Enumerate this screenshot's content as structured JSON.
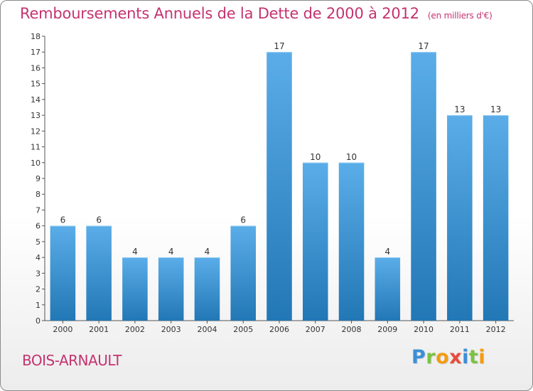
{
  "header": {
    "title": "Remboursements Annuels de la Dette de 2000 à 2012",
    "unit": "(en milliers d'€)"
  },
  "footer": {
    "commune": "BOIS-ARNAULT",
    "logo_letters": [
      "P",
      "r",
      "o",
      "x",
      "i",
      "t",
      "i"
    ],
    "logo_colors": [
      "#3a8fd8",
      "#7cc242",
      "#f39c12",
      "#e74c3c",
      "#3a8fd8",
      "#7cc242",
      "#f39c12"
    ]
  },
  "chart_data": {
    "type": "bar",
    "title": "Remboursements Annuels de la Dette de 2000 à 2012",
    "xlabel": "",
    "ylabel": "",
    "categories": [
      "2000",
      "2001",
      "2002",
      "2003",
      "2004",
      "2005",
      "2006",
      "2007",
      "2008",
      "2009",
      "2010",
      "2011",
      "2012"
    ],
    "values": [
      6,
      6,
      4,
      4,
      4,
      6,
      17,
      10,
      10,
      4,
      17,
      13,
      13
    ],
    "value_labels": [
      "6",
      "6",
      "4",
      "4",
      "4",
      "6",
      "17",
      "10",
      "10",
      "4",
      "17",
      "13",
      "13"
    ],
    "ylim": [
      0,
      18
    ],
    "yticks": [
      "0",
      "1",
      "2",
      "3",
      "4",
      "5",
      "6",
      "7",
      "8",
      "9",
      "10",
      "11",
      "12",
      "13",
      "14",
      "15",
      "16",
      "17",
      "18"
    ],
    "grid": false,
    "bar_color_top": "#5aade8",
    "bar_color_bottom": "#2277b5"
  }
}
